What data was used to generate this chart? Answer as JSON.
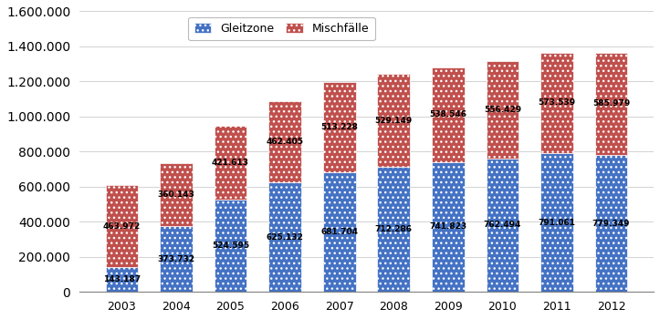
{
  "years": [
    "2003",
    "2004",
    "2005",
    "2006",
    "2007",
    "2008",
    "2009",
    "2010",
    "2011",
    "2012"
  ],
  "gleitzone": [
    143187,
    373732,
    524595,
    625132,
    681704,
    712286,
    741823,
    762494,
    791061,
    779349
  ],
  "mischfaelle": [
    463972,
    360143,
    421613,
    462405,
    513228,
    529149,
    538546,
    556429,
    573539,
    585979
  ],
  "gleitzone_color": "#4472C4",
  "mischfaelle_color": "#C0504D",
  "gleitzone_label": "Gleitzone",
  "mischfaelle_label": "Mischfälle",
  "ylim": [
    0,
    1600000
  ],
  "yticks": [
    0,
    200000,
    400000,
    600000,
    800000,
    1000000,
    1200000,
    1400000,
    1600000
  ],
  "background_color": "#FFFFFF",
  "plot_bg_color": "#FFFFFF",
  "grid_color": "#C0C0C0"
}
